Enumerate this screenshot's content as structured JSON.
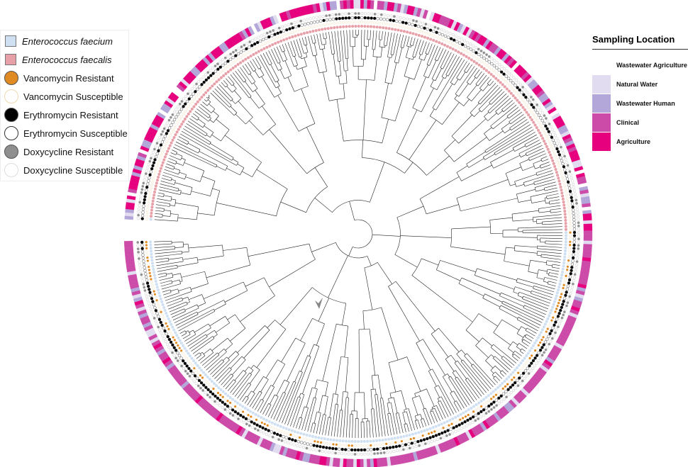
{
  "legend_left": {
    "items": [
      {
        "label": "Enterococcus faecium",
        "shape": "square",
        "color": "#cfe0f3",
        "italic": true
      },
      {
        "label": "Enterococcus faecalis",
        "shape": "square",
        "color": "#e8a0a8",
        "italic": true
      },
      {
        "label": "Vancomycin Resistant",
        "shape": "circle",
        "color": "#e08a24"
      },
      {
        "label": "Vancomycin Susceptible",
        "shape": "circle-outline",
        "color": "#f0d9b0"
      },
      {
        "label": "Erythromycin Resistant",
        "shape": "circle",
        "color": "#000000"
      },
      {
        "label": "Erythromycin Susceptible",
        "shape": "circle-outline",
        "color": "#333333"
      },
      {
        "label": "Doxycycline Resistant",
        "shape": "circle",
        "color": "#8f8f8f"
      },
      {
        "label": "Doxycycline Susceptible",
        "shape": "circle-outline",
        "color": "#dddddd"
      }
    ]
  },
  "legend_right": {
    "title": "Sampling Location",
    "items": [
      {
        "label": "Wastewater Agriculture",
        "color": "#ffffff"
      },
      {
        "label": "Natural Water",
        "color": "#e1dcef"
      },
      {
        "label": "Wastewater Human",
        "color": "#b3a6d8"
      },
      {
        "label": "Clinical",
        "color": "#cc4aa8"
      },
      {
        "label": "Agriculture",
        "color": "#e6007e"
      }
    ]
  },
  "colors": {
    "branch": "#222222",
    "arrow": "#888888"
  }
}
